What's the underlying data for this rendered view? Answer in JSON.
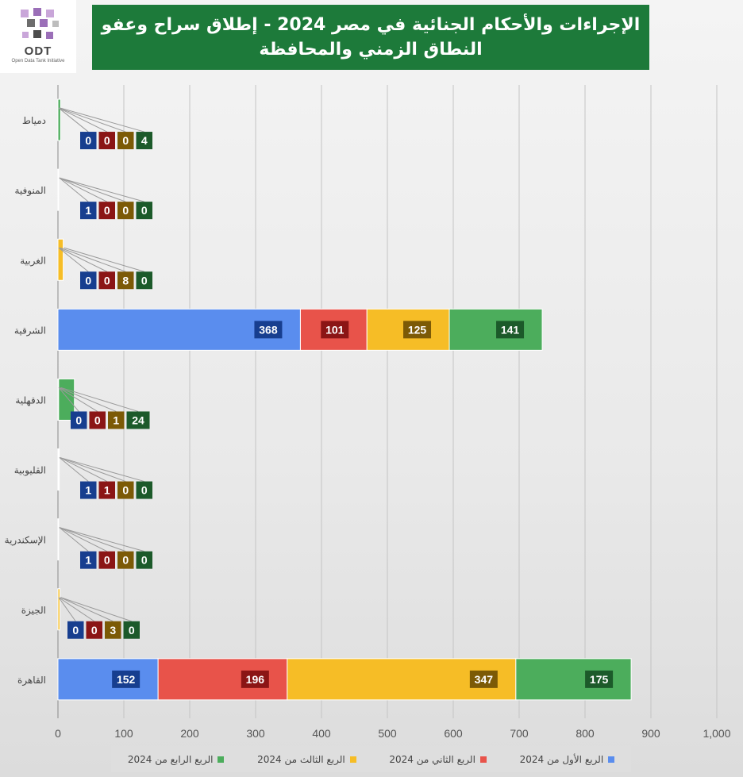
{
  "logo": {
    "text": "ODT",
    "subtitle": "Open Data Tank Initiative"
  },
  "chart_data": {
    "type": "bar",
    "orientation": "horizontal",
    "stacked": true,
    "title_line1": "الإجراءات والأحكام الجنائية في مصر 2024 - إطلاق سراح وعفو",
    "title_line2": "النطاق الزمني والمحافظة",
    "categories": [
      "دمياط",
      "المنوفية",
      "الغربية",
      "الشرقية",
      "الدقهلية",
      "القليوبية",
      "الإسكندرية",
      "الجيزة",
      "القاهرة"
    ],
    "series": [
      {
        "name": "الربع الأول من 2024",
        "color": "#5a8dee",
        "label_color": "#173e8f",
        "values": [
          0,
          1,
          0,
          368,
          0,
          1,
          1,
          0,
          152
        ]
      },
      {
        "name": "الربع الثاني من 2024",
        "color": "#e8534a",
        "label_color": "#8b1515",
        "values": [
          0,
          0,
          0,
          101,
          0,
          1,
          0,
          0,
          196
        ]
      },
      {
        "name": "الربع الثالث من 2024",
        "color": "#f6bd26",
        "label_color": "#7c5a06",
        "values": [
          0,
          0,
          8,
          125,
          1,
          0,
          0,
          3,
          347
        ]
      },
      {
        "name": "الربع الرابع من 2024",
        "color": "#4cad5c",
        "label_color": "#1c5a2a",
        "values": [
          4,
          0,
          0,
          141,
          24,
          0,
          0,
          0,
          175
        ]
      }
    ],
    "x_ticks": [
      "0",
      "100",
      "200",
      "300",
      "400",
      "500",
      "600",
      "700",
      "800",
      "900",
      "1,000"
    ],
    "xlim": [
      0,
      1000
    ],
    "grid": true,
    "legend_position": "bottom"
  }
}
